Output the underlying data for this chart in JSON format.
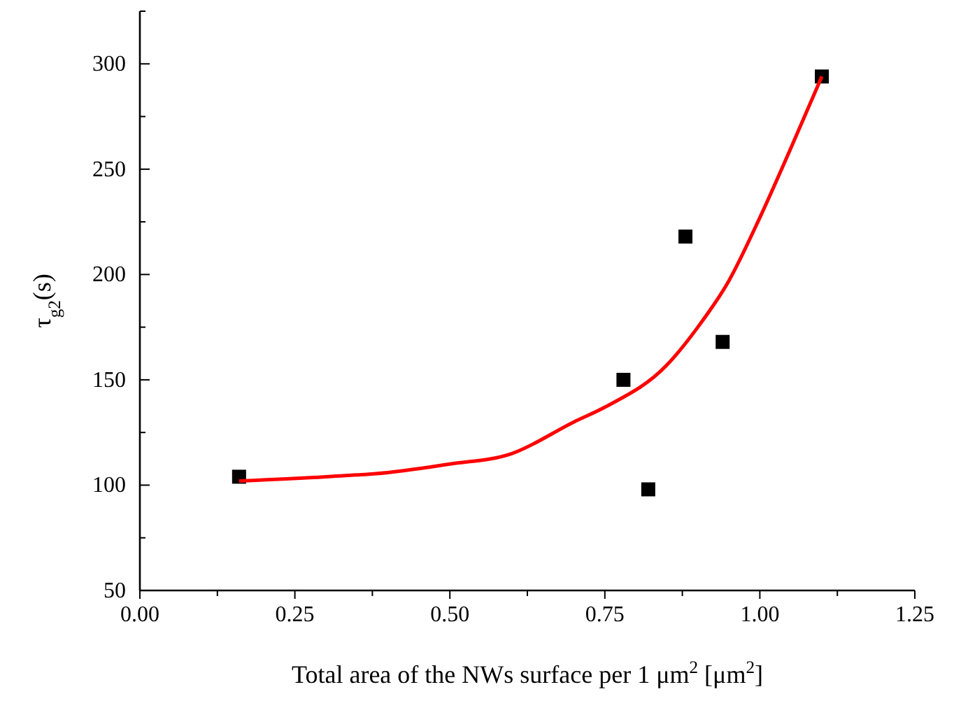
{
  "chart_data": {
    "type": "scatter",
    "xlabel": "Total area of the NWs surface per 1 μm$^{2}$ [μm$^{2}$]",
    "ylabel": "τ$_{g2}$(s)",
    "xlim": [
      0,
      1.25
    ],
    "ylim": [
      50,
      325
    ],
    "xticks": [
      {
        "value": 0,
        "label": "0.00"
      },
      {
        "value": 0.125,
        "label": null
      },
      {
        "value": 0.25,
        "label": "0.25"
      },
      {
        "value": 0.375,
        "label": null
      },
      {
        "value": 0.5,
        "label": "0.50"
      },
      {
        "value": 0.625,
        "label": null
      },
      {
        "value": 0.75,
        "label": "0.75"
      },
      {
        "value": 0.875,
        "label": null
      },
      {
        "value": 1,
        "label": "1.00"
      },
      {
        "value": 1.125,
        "label": null
      },
      {
        "value": 1.25,
        "label": "1.25"
      }
    ],
    "yticks": [
      50,
      {
        "value": 75,
        "label": null
      },
      100,
      {
        "value": 125,
        "label": null
      },
      150,
      {
        "value": 175,
        "label": null
      },
      200,
      {
        "value": 225,
        "label": null
      },
      250,
      {
        "value": 275,
        "label": null
      },
      300,
      {
        "value": 325,
        "label": null
      }
    ],
    "grid": false,
    "series": [
      {
        "color": "#000000",
        "marker": "square",
        "x": [
          0.16,
          0.78,
          0.82,
          0.88,
          0.94,
          1.1
        ],
        "values": [
          104,
          150,
          98,
          218,
          168,
          294
        ]
      },
      {
        "type": "line",
        "color": "#ff0000",
        "marker": "none",
        "line_style": "solid",
        "x": [
          0.16,
          0.3,
          0.4,
          0.5,
          0.6,
          0.7,
          0.75,
          0.85,
          0.9,
          0.95,
          1.0,
          1.05,
          1.1
        ],
        "values": [
          102,
          104,
          106,
          110,
          115,
          130,
          137,
          157,
          175,
          197,
          227,
          260,
          294
        ]
      }
    ]
  }
}
